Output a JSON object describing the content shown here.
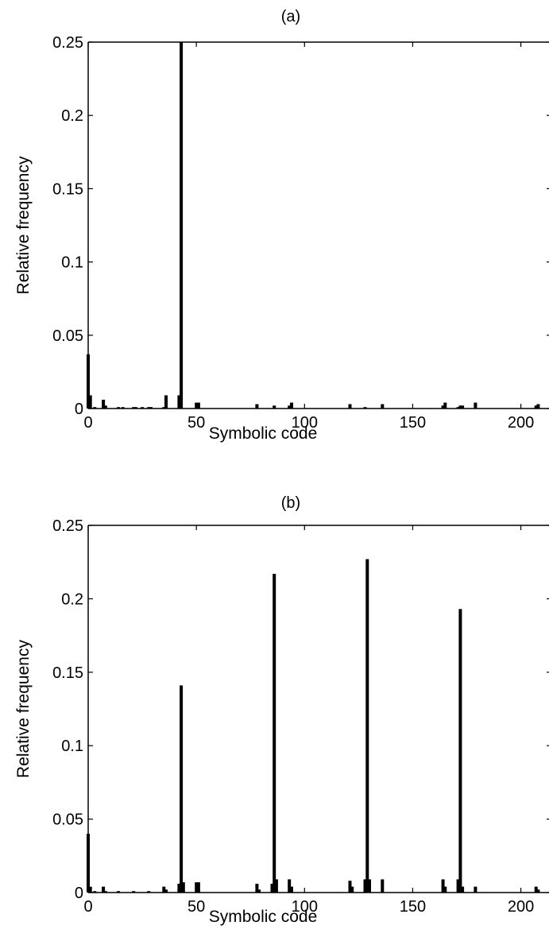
{
  "chart_data": [
    {
      "type": "bar",
      "title": "(a)",
      "xlabel": "Symbolic code",
      "ylabel": "Relative frequency",
      "xlim": [
        0,
        213
      ],
      "ylim": [
        0,
        0.25
      ],
      "xticks": [
        0,
        50,
        100,
        150,
        200
      ],
      "yticks": [
        0,
        0.05,
        0.1,
        0.15,
        0.2,
        0.25
      ],
      "xtick_labels": [
        "0",
        "50",
        "100",
        "150",
        "200"
      ],
      "ytick_labels": [
        "0",
        "0.05",
        "0.1",
        "0.15",
        "0.2",
        "0.25"
      ],
      "grid": false,
      "x": [
        0,
        1,
        3,
        7,
        8,
        14,
        16,
        21,
        22,
        25,
        28,
        29,
        35,
        36,
        42,
        43,
        50,
        51,
        78,
        86,
        93,
        94,
        121,
        128,
        136,
        164,
        165,
        171,
        172,
        173,
        179,
        207,
        208
      ],
      "values": [
        0.037,
        0.009,
        0.001,
        0.006,
        0.002,
        0.001,
        0.001,
        0.001,
        0.001,
        0.001,
        0.001,
        0.001,
        0.001,
        0.009,
        0.009,
        0.25,
        0.004,
        0.004,
        0.003,
        0.002,
        0.002,
        0.004,
        0.003,
        0.001,
        0.003,
        0.002,
        0.004,
        0.001,
        0.002,
        0.002,
        0.004,
        0.002,
        0.003
      ]
    },
    {
      "type": "bar",
      "title": "(b)",
      "xlabel": "Symbolic code",
      "ylabel": "Relative frequency",
      "xlim": [
        0,
        213
      ],
      "ylim": [
        0,
        0.25
      ],
      "xticks": [
        0,
        50,
        100,
        150,
        200
      ],
      "yticks": [
        0,
        0.05,
        0.1,
        0.15,
        0.2,
        0.25
      ],
      "xtick_labels": [
        "0",
        "50",
        "100",
        "150",
        "200"
      ],
      "ytick_labels": [
        "0",
        "0.05",
        "0.1",
        "0.15",
        "0.2",
        "0.25"
      ],
      "grid": false,
      "x": [
        0,
        1,
        3,
        7,
        8,
        14,
        21,
        28,
        35,
        36,
        42,
        43,
        44,
        50,
        51,
        78,
        79,
        85,
        86,
        87,
        93,
        94,
        121,
        122,
        128,
        129,
        130,
        136,
        164,
        165,
        171,
        172,
        173,
        179,
        207,
        208
      ],
      "values": [
        0.04,
        0.004,
        0.001,
        0.004,
        0.001,
        0.001,
        0.001,
        0.001,
        0.004,
        0.002,
        0.006,
        0.141,
        0.007,
        0.007,
        0.007,
        0.006,
        0.002,
        0.006,
        0.217,
        0.009,
        0.009,
        0.004,
        0.008,
        0.004,
        0.009,
        0.227,
        0.009,
        0.009,
        0.009,
        0.004,
        0.009,
        0.193,
        0.004,
        0.004,
        0.004,
        0.002
      ]
    }
  ]
}
